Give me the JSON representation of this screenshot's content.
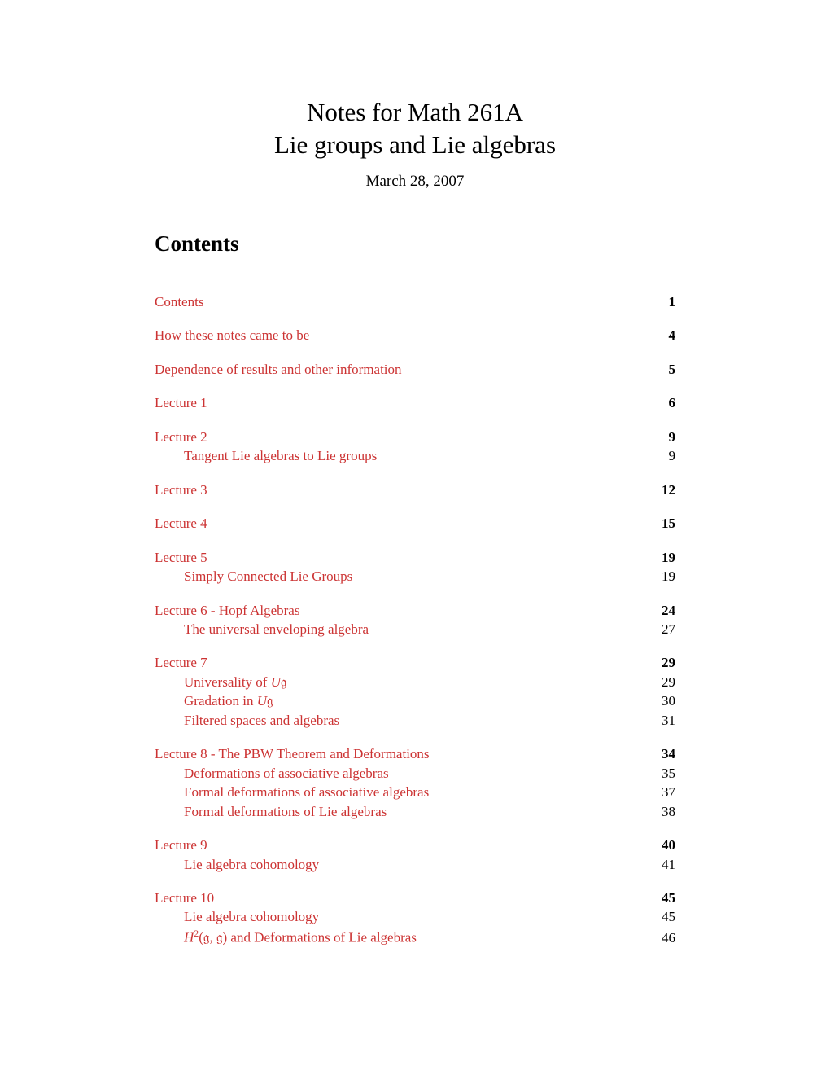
{
  "title": {
    "line1": "Notes for Math 261A",
    "line2": "Lie groups and Lie algebras"
  },
  "date": "March 28, 2007",
  "contents_heading": "Contents",
  "link_color": "#cc3333",
  "text_color": "#000000",
  "background_color": "#ffffff",
  "fontsize_title": 31,
  "fontsize_date": 19,
  "fontsize_heading": 27,
  "fontsize_body": 17,
  "toc": [
    {
      "title": "Contents",
      "page": "1",
      "subs": []
    },
    {
      "title": "How these notes came to be",
      "page": "4",
      "subs": []
    },
    {
      "title": "Dependence of results and other information",
      "page": "5",
      "subs": []
    },
    {
      "title": "Lecture 1",
      "page": "6",
      "subs": []
    },
    {
      "title": "Lecture 2",
      "page": "9",
      "subs": [
        {
          "title": "Tangent Lie algebras to Lie groups",
          "page": "9"
        }
      ]
    },
    {
      "title": "Lecture 3",
      "page": "12",
      "subs": []
    },
    {
      "title": "Lecture 4",
      "page": "15",
      "subs": []
    },
    {
      "title": "Lecture 5",
      "page": "19",
      "subs": [
        {
          "title": "Simply Connected Lie Groups",
          "page": "19"
        }
      ]
    },
    {
      "title": "Lecture 6 - Hopf Algebras",
      "page": "24",
      "subs": [
        {
          "title": "The universal enveloping algebra",
          "page": "27"
        }
      ]
    },
    {
      "title": "Lecture 7",
      "page": "29",
      "subs": [
        {
          "title_html": "Universality of <span class=\"math-it\">U</span>𝔤",
          "page": "29"
        },
        {
          "title_html": "Gradation in <span class=\"math-it\">U</span>𝔤",
          "page": "30"
        },
        {
          "title": "Filtered spaces and algebras",
          "page": "31"
        }
      ]
    },
    {
      "title": "Lecture 8 - The PBW Theorem and Deformations",
      "page": "34",
      "subs": [
        {
          "title": "Deformations of associative algebras",
          "page": "35"
        },
        {
          "title": "Formal deformations of associative algebras",
          "page": "37"
        },
        {
          "title": "Formal deformations of Lie algebras",
          "page": "38"
        }
      ]
    },
    {
      "title": "Lecture 9",
      "page": "40",
      "subs": [
        {
          "title": "Lie algebra cohomology",
          "page": "41"
        }
      ]
    },
    {
      "title": "Lecture 10",
      "page": "45",
      "subs": [
        {
          "title": "Lie algebra cohomology",
          "page": "45"
        },
        {
          "title_html": "<span class=\"math-it\">H</span><sup>2</sup>(𝔤, 𝔤) and Deformations of Lie algebras",
          "page": "46"
        }
      ]
    }
  ]
}
